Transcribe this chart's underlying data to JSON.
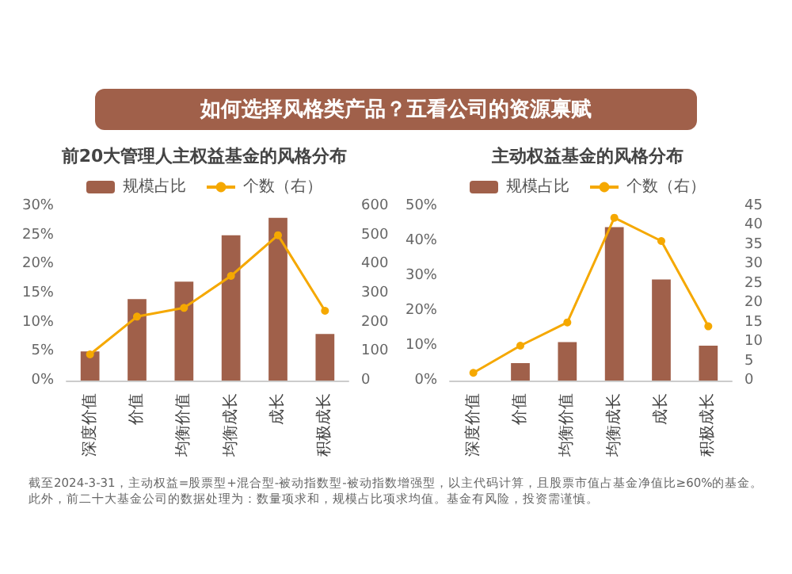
{
  "chart_data": [
    {
      "type": "bar",
      "title": "如何选择风格类产品？五看公司的资源禀赋",
      "subtitle": "前20大管理人主权益基金的风格分布",
      "categories": [
        "深度价值",
        "价值",
        "均衡价值",
        "均衡成长",
        "成长",
        "积极成长"
      ],
      "series": [
        {
          "name": "规模占比",
          "color": "#a0604a",
          "values": [
            5,
            14,
            17,
            25,
            28,
            8
          ]
        },
        {
          "name": "个数（右）",
          "type": "line",
          "axis": "y2",
          "color": "#f5a800",
          "values": [
            90,
            220,
            250,
            360,
            500,
            240
          ]
        }
      ],
      "ylim": [
        0,
        30
      ],
      "yticks": [
        {
          "value": 0,
          "label": "0%"
        },
        {
          "value": 5,
          "label": "5%"
        },
        {
          "value": 10,
          "label": "10%"
        },
        {
          "value": 15,
          "label": "15%"
        },
        {
          "value": 20,
          "label": "20%"
        },
        {
          "value": 25,
          "label": "25%"
        },
        {
          "value": 30,
          "label": "30%"
        }
      ],
      "y2lim": [
        0,
        600
      ],
      "y2ticks": [
        0,
        100,
        200,
        300,
        400,
        500,
        600
      ],
      "legend": "top",
      "marker": "circle",
      "grid": false
    },
    {
      "type": "bar",
      "subtitle": "主动权益基金的风格分布",
      "categories": [
        "深度价值",
        "价值",
        "均衡价值",
        "均衡成长",
        "成长",
        "积极成长"
      ],
      "series": [
        {
          "name": "规模占比",
          "color": "#a0604a",
          "values": [
            0,
            5,
            11,
            44,
            29,
            10
          ]
        },
        {
          "name": "个数（右）",
          "type": "line",
          "axis": "y2",
          "color": "#f5a800",
          "values": [
            2,
            9,
            15,
            42,
            36,
            14
          ]
        }
      ],
      "ylim": [
        0,
        50
      ],
      "yticks": [
        {
          "value": 0,
          "label": "0%"
        },
        {
          "value": 10,
          "label": "10%"
        },
        {
          "value": 20,
          "label": "20%"
        },
        {
          "value": 30,
          "label": "30%"
        },
        {
          "value": 40,
          "label": "40%"
        },
        {
          "value": 50,
          "label": "50%"
        }
      ],
      "y2lim": [
        0,
        45
      ],
      "y2ticks": [
        0,
        5,
        10,
        15,
        20,
        25,
        30,
        35,
        40,
        45
      ],
      "legend": "top",
      "marker": "circle",
      "grid": false,
      "annotations": [
        "截至2024-3-31，主动权益=股票型+混合型-被动指数型-被动指数增强型，以主代码计算，且股票市值占基金净值比≥60%的基金。此外，前二十大基金公司的数据处理为：数量项求和，规模占比项求均值。基金有风险，投资需谨慎。"
      ]
    }
  ]
}
